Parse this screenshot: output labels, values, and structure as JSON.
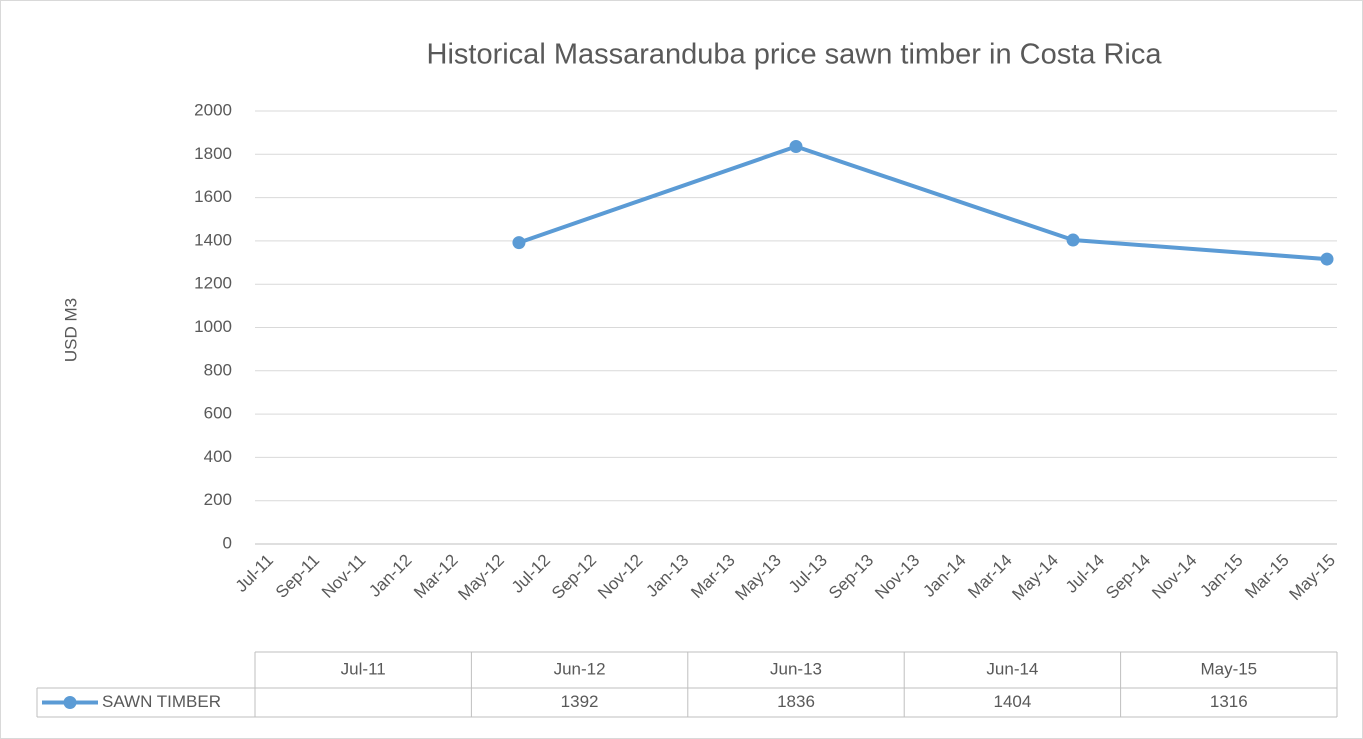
{
  "chart_data": {
    "type": "line",
    "title": "Historical Massaranduba price sawn timber in Costa Rica",
    "ylabel": "USD M3",
    "x": [
      "Jul-11",
      "Jun-12",
      "Jun-13",
      "Jun-14",
      "May-15"
    ],
    "series": [
      {
        "name": "SAWN TIMBER",
        "color": "#5b9bd5",
        "values": [
          null,
          1392,
          1836,
          1404,
          1316
        ]
      }
    ],
    "xlim": [
      "Jul-11",
      "May-15"
    ],
    "xticks": [
      "Jul-11",
      "Sep-11",
      "Nov-11",
      "Jan-12",
      "Mar-12",
      "May-12",
      "Jul-12",
      "Sep-12",
      "Nov-12",
      "Jan-13",
      "Mar-13",
      "May-13",
      "Jul-13",
      "Sep-13",
      "Nov-13",
      "Jan-14",
      "Mar-14",
      "May-14",
      "Jul-14",
      "Sep-14",
      "Nov-14",
      "Jan-15",
      "Mar-15",
      "May-15"
    ],
    "ylim": [
      0,
      2000
    ],
    "yticks": [
      0,
      200,
      400,
      600,
      800,
      1000,
      1200,
      1400,
      1600,
      1800,
      2000
    ],
    "grid": true,
    "data_table": true
  }
}
